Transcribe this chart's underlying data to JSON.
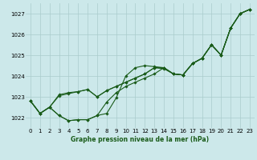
{
  "title": "Graphe pression niveau de la mer (hPa)",
  "bg_color": "#cce8ea",
  "grid_color": "#aacccc",
  "line_color": "#1a5c1a",
  "xlim": [
    -0.5,
    23.5
  ],
  "ylim": [
    1021.5,
    1027.5
  ],
  "yticks": [
    1022,
    1023,
    1024,
    1025,
    1026,
    1027
  ],
  "xticks": [
    0,
    1,
    2,
    3,
    4,
    5,
    6,
    7,
    8,
    9,
    10,
    11,
    12,
    13,
    14,
    15,
    16,
    17,
    18,
    19,
    20,
    21,
    22,
    23
  ],
  "line1": [
    1022.8,
    1022.2,
    1022.5,
    1022.1,
    1021.85,
    1021.9,
    1021.9,
    1022.1,
    1022.2,
    1022.95,
    1024.0,
    1024.4,
    1024.5,
    1024.45,
    1024.4,
    1024.1,
    1024.05,
    1024.6,
    1024.85,
    1025.5,
    1025.0,
    1026.3,
    1027.0,
    1027.2
  ],
  "line2": [
    1022.8,
    1022.2,
    1022.5,
    1022.1,
    1021.85,
    1021.9,
    1021.9,
    1022.1,
    1022.75,
    1023.2,
    1023.5,
    1023.7,
    1023.9,
    1024.1,
    1024.4,
    1024.1,
    1024.05,
    1024.6,
    1024.85,
    1025.5,
    1025.0,
    1026.3,
    1027.0,
    1027.2
  ],
  "line3": [
    1022.8,
    1022.2,
    1022.5,
    1023.1,
    1023.2,
    1023.25,
    1023.35,
    1023.0,
    1023.3,
    1023.5,
    1023.7,
    1023.9,
    1024.1,
    1024.4,
    1024.4,
    1024.1,
    1024.05,
    1024.6,
    1024.85,
    1025.5,
    1025.0,
    1026.3,
    1027.0,
    1027.2
  ],
  "line4": [
    1022.8,
    1022.2,
    1022.5,
    1023.05,
    1023.15,
    1023.25,
    1023.35,
    1023.0,
    1023.3,
    1023.5,
    1023.7,
    1023.9,
    1024.1,
    1024.4,
    1024.35,
    1024.1,
    1024.05,
    1024.6,
    1024.85,
    1025.5,
    1025.0,
    1026.3,
    1027.0,
    1027.2
  ],
  "title_fontsize": 5.5,
  "tick_fontsize": 5.0,
  "lw": 0.8,
  "ms": 1.8
}
